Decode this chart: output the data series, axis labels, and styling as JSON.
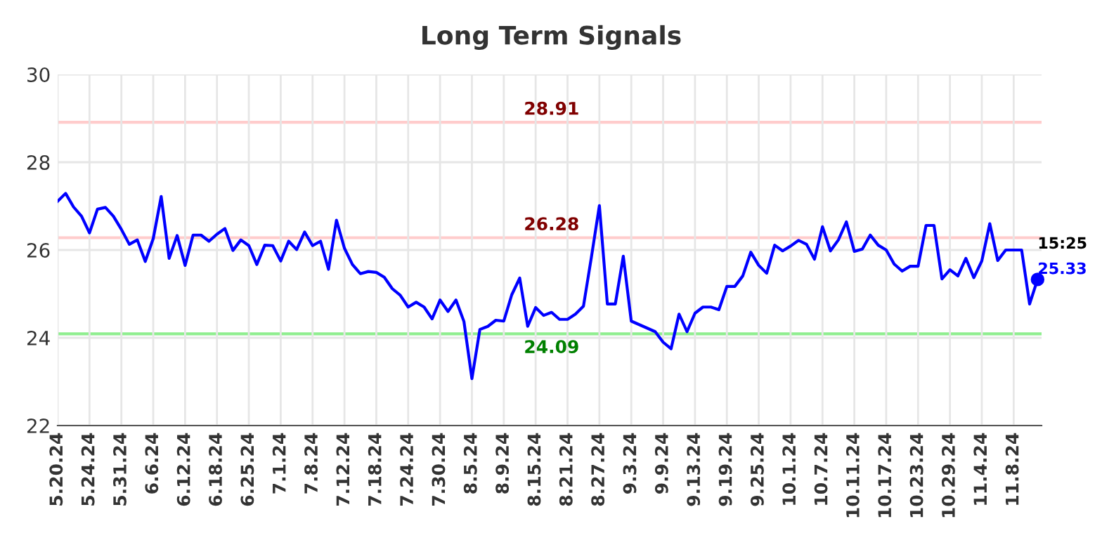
{
  "chart_data": {
    "type": "line",
    "title": "Long Term Signals",
    "categories": [
      "5.20.24",
      null,
      null,
      null,
      "5.24.24",
      null,
      null,
      null,
      "5.31.24",
      null,
      null,
      null,
      "6.6.24",
      null,
      null,
      null,
      "6.12.24",
      null,
      null,
      null,
      "6.18.24",
      null,
      null,
      null,
      "6.25.24",
      null,
      null,
      null,
      "7.1.24",
      null,
      null,
      null,
      "7.8.24",
      null,
      null,
      null,
      "7.12.24",
      null,
      null,
      null,
      "7.18.24",
      null,
      null,
      null,
      "7.24.24",
      null,
      null,
      null,
      "7.30.24",
      null,
      null,
      null,
      "8.5.24",
      null,
      null,
      null,
      "8.9.24",
      null,
      null,
      null,
      "8.15.24",
      null,
      null,
      null,
      "8.21.24",
      null,
      null,
      null,
      "8.27.24",
      null,
      null,
      null,
      "9.3.24",
      null,
      null,
      null,
      "9.9.24",
      null,
      null,
      null,
      "9.13.24",
      null,
      null,
      null,
      "9.19.24",
      null,
      null,
      null,
      "9.25.24",
      null,
      null,
      null,
      "10.1.24",
      null,
      null,
      null,
      "10.7.24",
      null,
      null,
      null,
      "10.11.24",
      null,
      null,
      null,
      "10.17.24",
      null,
      null,
      null,
      "10.23.24",
      null,
      null,
      null,
      "10.29.24",
      null,
      null,
      null,
      "11.4.24",
      null,
      null,
      null,
      "11.8.24",
      null,
      null,
      null
    ],
    "series": [
      {
        "color": "#0000ff",
        "values": [
          27.11,
          27.29,
          26.98,
          26.77,
          26.39,
          26.93,
          26.97,
          26.77,
          26.47,
          26.13,
          26.23,
          25.74,
          26.26,
          27.22,
          25.81,
          26.33,
          25.65,
          26.34,
          26.34,
          26.2,
          26.36,
          26.49,
          25.99,
          26.23,
          26.1,
          25.67,
          26.11,
          26.1,
          25.75,
          26.2,
          26.01,
          26.41,
          26.1,
          26.2,
          25.56,
          26.68,
          26.04,
          25.67,
          25.46,
          25.51,
          25.49,
          25.38,
          25.12,
          24.97,
          24.7,
          24.81,
          24.7,
          24.43,
          24.86,
          24.6,
          24.86,
          24.37,
          23.07,
          24.19,
          24.26,
          24.4,
          24.38,
          24.98,
          25.36,
          24.26,
          24.69,
          24.51,
          24.58,
          24.42,
          24.42,
          24.54,
          24.72,
          25.84,
          27.01,
          24.77,
          24.77,
          25.86,
          24.38,
          24.3,
          24.22,
          24.14,
          23.9,
          23.75,
          24.54,
          24.14,
          24.56,
          24.7,
          24.7,
          24.64,
          25.17,
          25.17,
          25.41,
          25.95,
          25.65,
          25.47,
          26.11,
          25.98,
          26.09,
          26.22,
          26.13,
          25.79,
          26.53,
          25.98,
          26.23,
          26.64,
          25.97,
          26.02,
          26.34,
          26.11,
          26.0,
          25.68,
          25.52,
          25.63,
          25.63,
          26.56,
          26.56,
          25.34,
          25.55,
          25.41,
          25.81,
          25.37,
          25.75,
          26.6,
          25.76,
          26.0,
          26.0,
          26.0,
          24.77,
          25.33
        ]
      }
    ],
    "ylim": [
      22,
      30
    ],
    "yticks": [
      22,
      24,
      26,
      28,
      30
    ],
    "grid": true,
    "ref_lines": [
      {
        "axis": "y",
        "value": 28.91,
        "label": "28.91",
        "color": "#ffcccc"
      },
      {
        "axis": "y",
        "value": 26.28,
        "label": "26.28",
        "color": "#ffcccc"
      },
      {
        "axis": "y",
        "value": 24.09,
        "label": "24.09",
        "color": "#90ee90"
      }
    ],
    "annotations": [
      "15:25",
      "25.33"
    ]
  }
}
